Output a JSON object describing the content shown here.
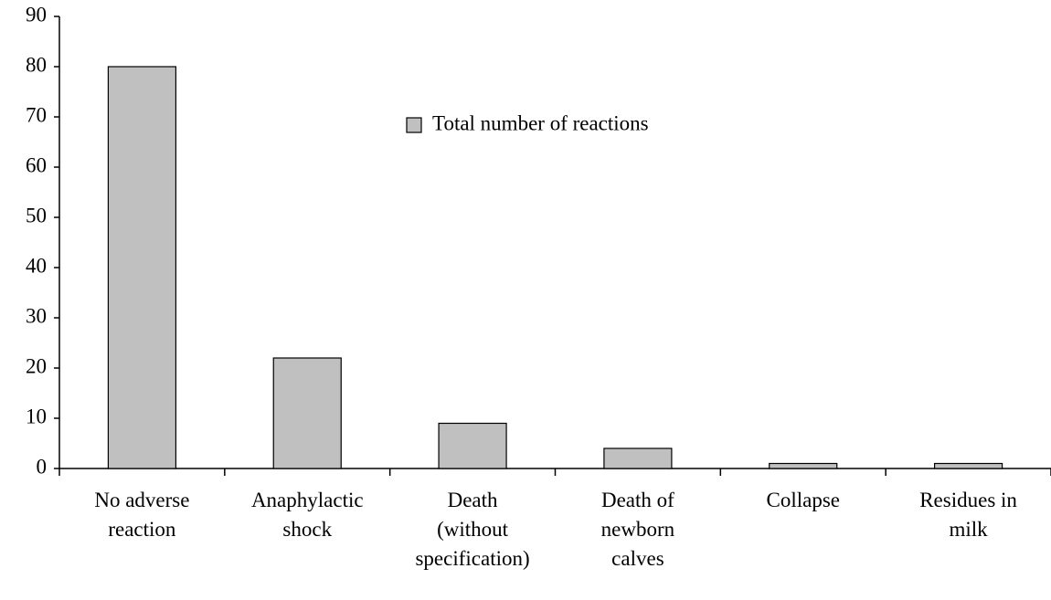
{
  "chart_data": {
    "type": "bar",
    "categories": [
      "No adverse\nreaction",
      "Anaphylactic\nshock",
      "Death\n(without\nspecification)",
      "Death of\nnewborn\ncalves",
      "Collapse",
      "Residues in\nmilk"
    ],
    "series": [
      {
        "name": "Total number of reactions",
        "color": "#c0c0c0",
        "values": [
          80,
          22,
          9,
          4,
          1,
          1
        ]
      }
    ],
    "ylim": [
      0,
      90
    ],
    "yticks": [
      0,
      10,
      20,
      30,
      40,
      50,
      60,
      70,
      80,
      90
    ],
    "grid": false
  }
}
